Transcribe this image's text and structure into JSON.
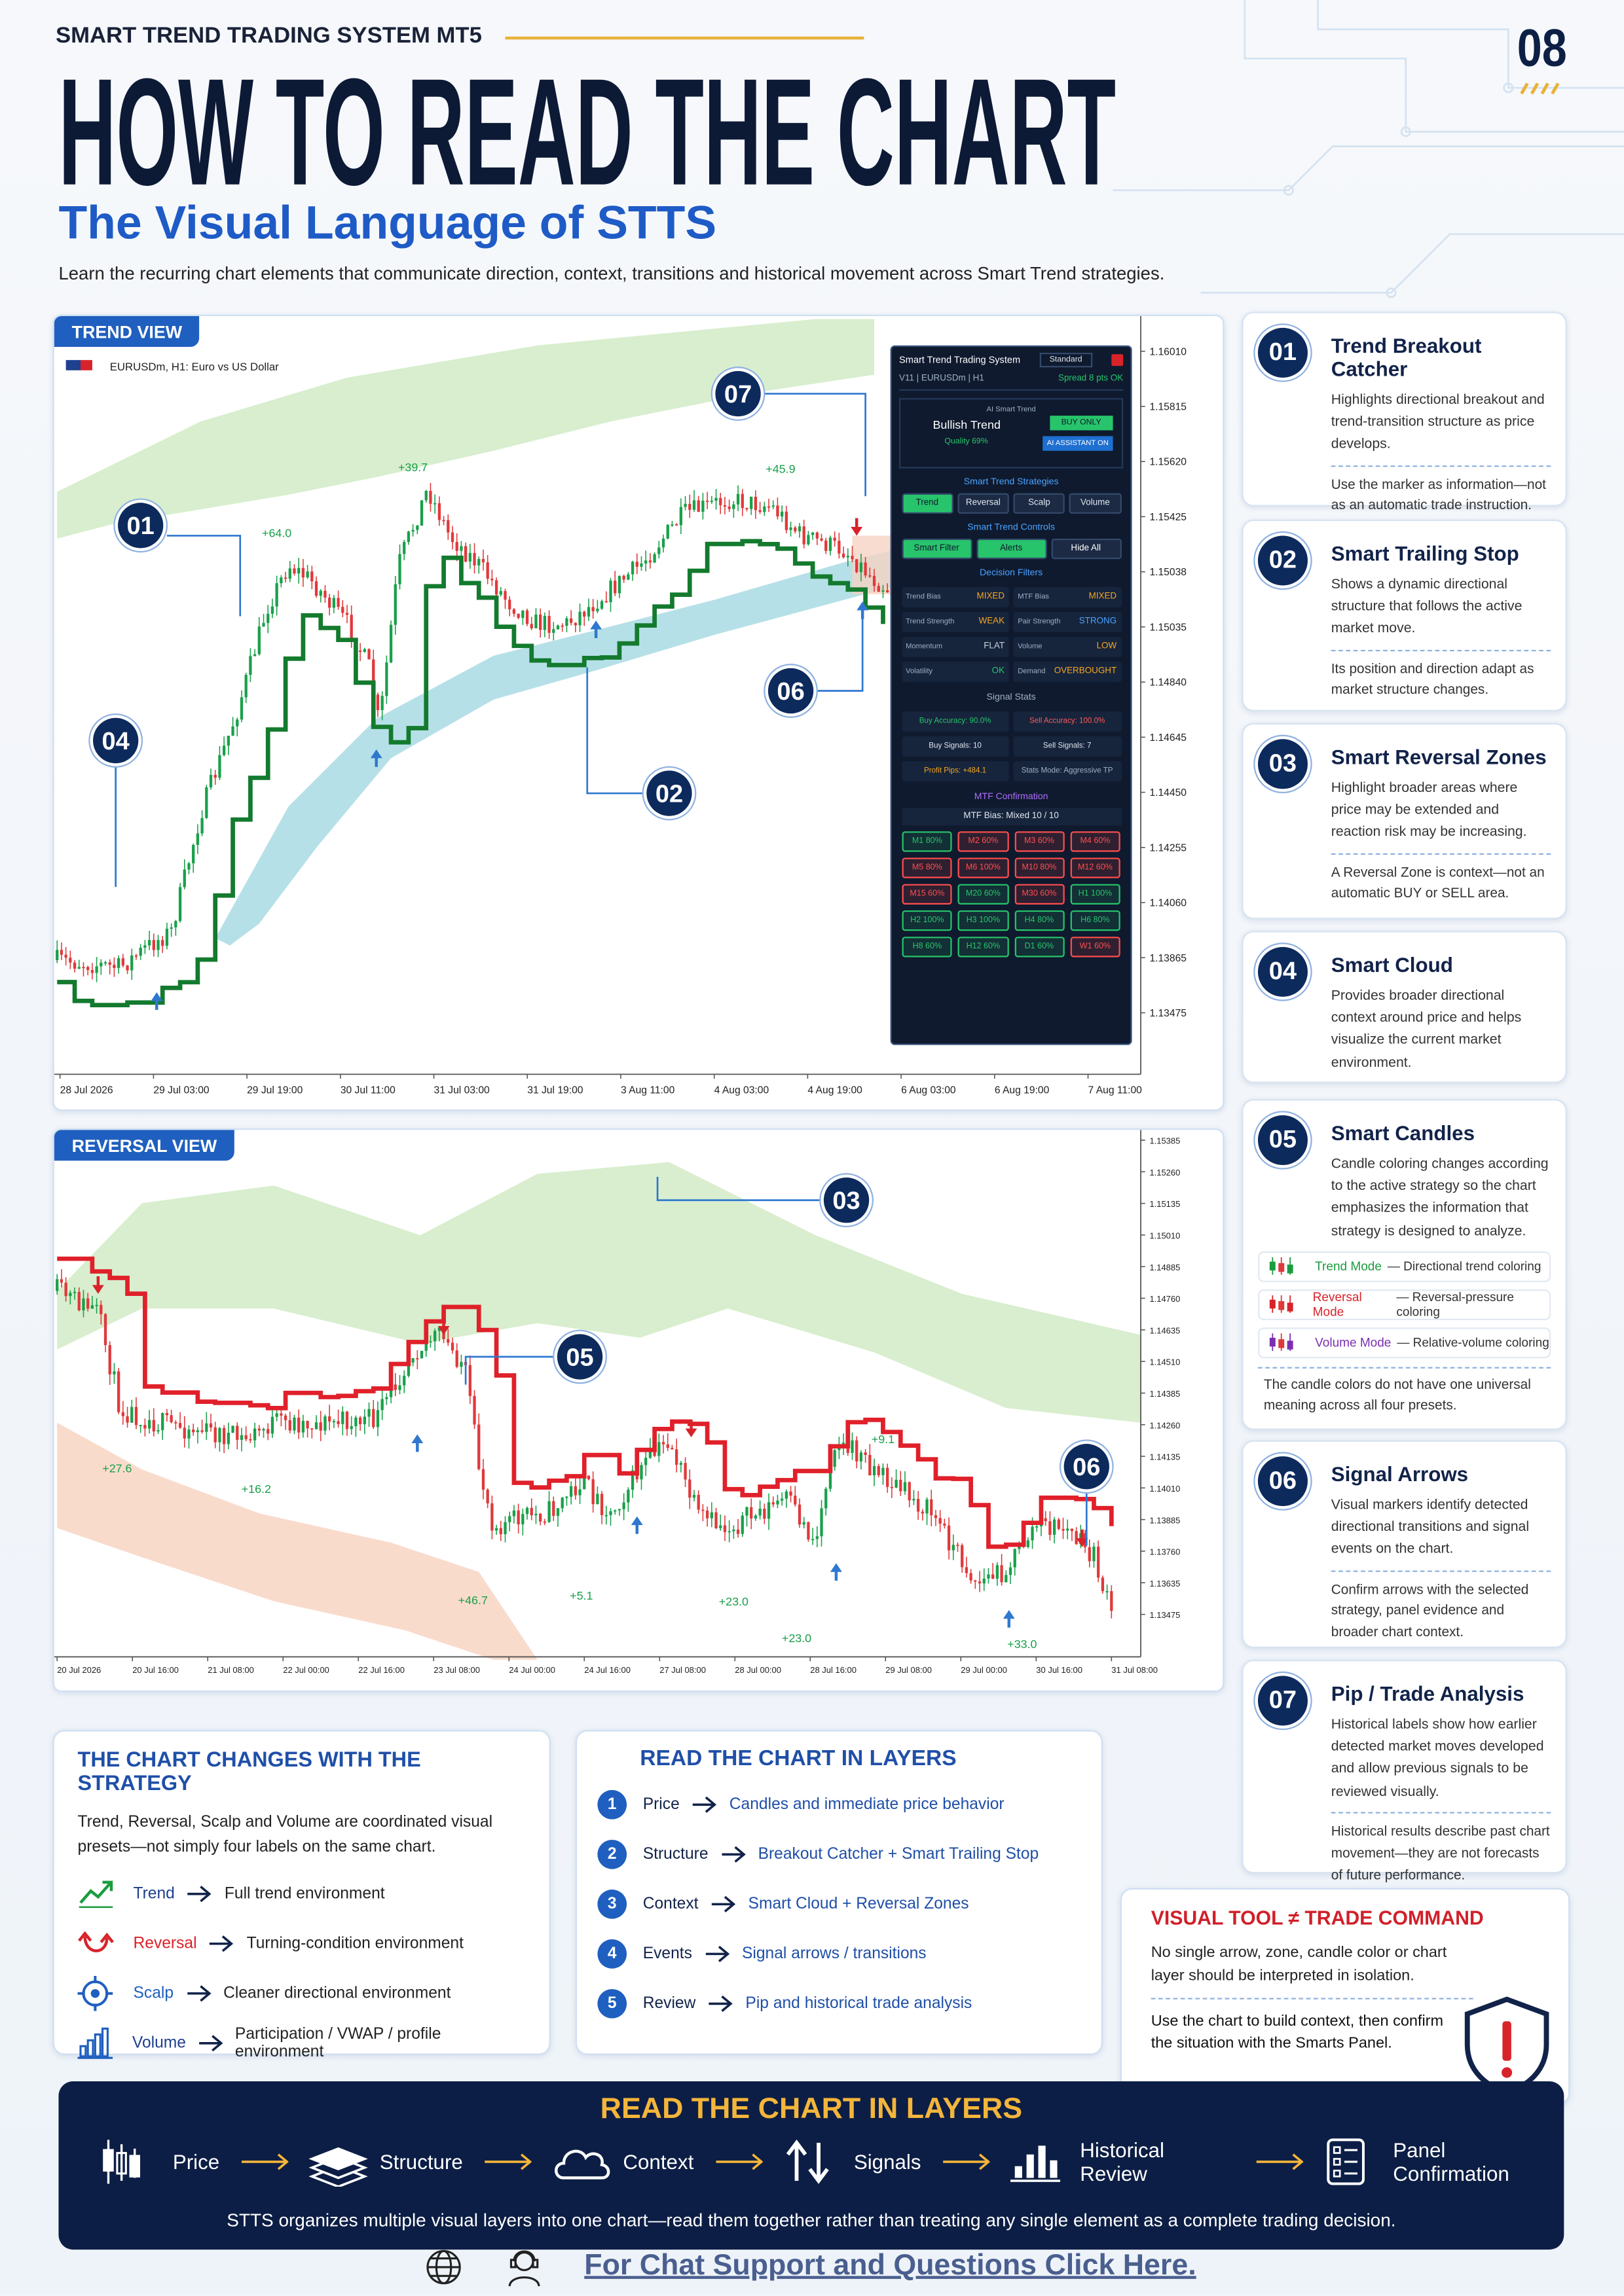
{
  "header": {
    "brand": "SMART TREND TRADING SYSTEM MT5",
    "page_number": "08",
    "title": "HOW TO READ THE CHART",
    "subtitle": "The Visual Language of STTS",
    "intro": "Learn the recurring chart elements that communicate direction, context, transitions and historical movement across Smart Trend strategies."
  },
  "trend_view": {
    "label": "TREND VIEW",
    "symbol": "EURUSDm, H1:  Euro vs US Dollar",
    "price_axis": [
      "1.16010",
      "1.15815",
      "1.15620",
      "1.15425",
      "1.15038",
      "1.15035",
      "1.14840",
      "1.14645",
      "1.14450",
      "1.14255",
      "1.14060",
      "1.13865",
      "1.13475"
    ],
    "time_axis": [
      "28 Jul 2026",
      "29 Jul 03:00",
      "29 Jul 19:00",
      "30 Jul 11:00",
      "31 Jul 03:00",
      "31 Jul 19:00",
      "3 Aug 11:00",
      "4 Aug 03:00",
      "4 Aug 19:00",
      "6 Aug 03:00",
      "6 Aug 19:00",
      "7 Aug 11:00"
    ],
    "callouts": [
      "07",
      "01",
      "04",
      "02",
      "06"
    ],
    "pip_labels": [
      "+39.7",
      "+64.0",
      "+45.9"
    ]
  },
  "panel": {
    "title": "Smart Trend Trading System",
    "preset": "Standard",
    "version": "V11 | EURUSDm | H1",
    "spread": "Spread 8 pts OK",
    "ai_label": "AI Smart Trend",
    "trend": "Bullish Trend",
    "quality": "Quality 69%",
    "buy_only": "BUY ONLY",
    "ai_assistant": "AI ASSISTANT ON",
    "strategies_title": "Smart Trend Strategies",
    "strategies": [
      "Trend",
      "Reversal",
      "Scalp",
      "Volume"
    ],
    "controls_title": "Smart Trend Controls",
    "controls": [
      "Smart Filter",
      "Alerts",
      "Hide All"
    ],
    "filters_title": "Decision Filters",
    "filters": [
      {
        "label": "Trend Bias",
        "value": "MIXED",
        "color": "#f5a623"
      },
      {
        "label": "MTF Bias",
        "value": "MIXED",
        "color": "#f5a623"
      },
      {
        "label": "Trend Strength",
        "value": "WEAK",
        "color": "#f5a623"
      },
      {
        "label": "Pair Strength",
        "value": "STRONG",
        "color": "#4aa3ff"
      },
      {
        "label": "Momentum",
        "value": "FLAT",
        "color": "#c9d3e0"
      },
      {
        "label": "Volume",
        "value": "LOW",
        "color": "#f5a623"
      },
      {
        "label": "Volatility",
        "value": "OK",
        "color": "#27c46b"
      },
      {
        "label": "Demand",
        "value": "OVERBOUGHT",
        "color": "#f5a623"
      }
    ],
    "stats_title": "Signal Stats",
    "stats": [
      {
        "text": "Buy Accuracy: 90.0%",
        "color": "#27c46b"
      },
      {
        "text": "Sell Accuracy: 100.0%",
        "color": "#ff5a5a"
      },
      {
        "text": "Buy Signals: 10",
        "color": "#dfe6ef"
      },
      {
        "text": "Sell Signals: 7",
        "color": "#dfe6ef"
      },
      {
        "text": "Profit Pips: +484.1",
        "color": "#f5a623"
      },
      {
        "text": "Stats Mode: Aggressive TP",
        "color": "#9fb0c6"
      }
    ],
    "mtf_title": "MTF Confirmation",
    "mtf_summary": "MTF Bias: Mixed 10 / 10",
    "mtf": [
      {
        "label": "M1 80%",
        "color": "#27c46b"
      },
      {
        "label": "M2 60%",
        "color": "#ff4d4d"
      },
      {
        "label": "M3 60%",
        "color": "#ff4d4d"
      },
      {
        "label": "M4 60%",
        "color": "#ff4d4d"
      },
      {
        "label": "M5 80%",
        "color": "#ff4d4d"
      },
      {
        "label": "M6 100%",
        "color": "#ff4d4d"
      },
      {
        "label": "M10 80%",
        "color": "#ff4d4d"
      },
      {
        "label": "M12 60%",
        "color": "#ff4d4d"
      },
      {
        "label": "M15 60%",
        "color": "#ff4d4d"
      },
      {
        "label": "M20 60%",
        "color": "#27c46b"
      },
      {
        "label": "M30 60%",
        "color": "#ff4d4d"
      },
      {
        "label": "H1 100%",
        "color": "#27c46b"
      },
      {
        "label": "H2 100%",
        "color": "#27c46b"
      },
      {
        "label": "H3 100%",
        "color": "#27c46b"
      },
      {
        "label": "H4 80%",
        "color": "#27c46b"
      },
      {
        "label": "H6 80%",
        "color": "#27c46b"
      },
      {
        "label": "H8 60%",
        "color": "#27c46b"
      },
      {
        "label": "H12 60%",
        "color": "#27c46b"
      },
      {
        "label": "D1 60%",
        "color": "#27c46b"
      },
      {
        "label": "W1 60%",
        "color": "#ff4d4d"
      }
    ]
  },
  "reversal_view": {
    "label": "REVERSAL VIEW",
    "price_axis": [
      "1.15385",
      "1.15260",
      "1.15135",
      "1.15010",
      "1.14885",
      "1.14760",
      "1.14635",
      "1.14510",
      "1.14385",
      "1.14260",
      "1.14135",
      "1.14010",
      "1.13885",
      "1.13760",
      "1.13635",
      "1.13475"
    ],
    "time_axis": [
      "20 Jul 2026",
      "20 Jul 16:00",
      "21 Jul 08:00",
      "22 Jul 00:00",
      "22 Jul 16:00",
      "23 Jul 08:00",
      "24 Jul 00:00",
      "24 Jul 16:00",
      "27 Jul 08:00",
      "28 Jul 00:00",
      "28 Jul 16:00",
      "29 Jul 08:00",
      "29 Jul 00:00",
      "30 Jul 16:00",
      "31 Jul 08:00"
    ],
    "callouts": [
      "03",
      "05",
      "06"
    ],
    "pip_labels": [
      "+27.6",
      "+16.2",
      "+46.7",
      "+5.1",
      "+23.0",
      "+23.0",
      "+9.1",
      "+33.0"
    ]
  },
  "cards": [
    {
      "number": "01",
      "title": "Trend Breakout Catcher",
      "text": "Highlights directional breakout and trend-transition structure as price develops.",
      "note": "Use the marker as information—not as an automatic trade instruction."
    },
    {
      "number": "02",
      "title": "Smart Trailing Stop",
      "text": "Shows a dynamic directional structure that follows the active market move.",
      "note": "Its position and direction adapt as market structure changes."
    },
    {
      "number": "03",
      "title": "Smart Reversal Zones",
      "text": "Highlight broader areas where price may be extended and reaction risk may be increasing.",
      "note": "A Reversal Zone is context—not an automatic BUY or SELL area."
    },
    {
      "number": "04",
      "title": "Smart Cloud",
      "text": "Provides broader directional context around price and helps visualize the current market environment."
    },
    {
      "number": "05",
      "title": "Smart Candles",
      "text": "Candle coloring changes according to the active strategy so the chart emphasizes the information that strategy is designed to analyze.",
      "modes": [
        {
          "name": "Trend Mode",
          "desc": "— Directional trend coloring",
          "color": "#1a9c3e"
        },
        {
          "name": "Reversal Mode",
          "desc": "— Reversal-pressure coloring",
          "color": "#d8232a"
        },
        {
          "name": "Volume Mode",
          "desc": "— Relative-volume coloring",
          "color": "#7b2fb0"
        }
      ],
      "note": "The candle colors do not have one universal meaning across all four presets."
    },
    {
      "number": "06",
      "title": "Signal Arrows",
      "text": "Visual markers identify detected directional transitions and signal events on the chart.",
      "note": "Confirm arrows with the selected strategy, panel evidence and broader chart context."
    },
    {
      "number": "07",
      "title": "Pip / Trade Analysis",
      "text": "Historical labels show how earlier detected market moves developed and allow previous signals to be reviewed visually.",
      "note": "Historical results describe past chart movement—they are not forecasts of future performance."
    }
  ],
  "strategy": {
    "title": "THE CHART CHANGES WITH THE STRATEGY",
    "text": "Trend, Reversal, Scalp and Volume are coordinated visual presets—not simply four labels on the same chart.",
    "items": [
      {
        "name": "Trend",
        "desc": "Full trend environment",
        "color": "#1f3f8f"
      },
      {
        "name": "Reversal",
        "desc": "Turning-condition environment",
        "color": "#d8232a"
      },
      {
        "name": "Scalp",
        "desc": "Cleaner directional environment",
        "color": "#1f5fbf"
      },
      {
        "name": "Volume",
        "desc": "Participation / VWAP / profile environment",
        "color": "#1f3f8f"
      }
    ]
  },
  "layers": {
    "title": "READ THE CHART IN LAYERS",
    "items": [
      {
        "number": "1",
        "name": "Price",
        "desc": "Candles and immediate price behavior"
      },
      {
        "number": "2",
        "name": "Structure",
        "desc": "Breakout Catcher + Smart Trailing Stop"
      },
      {
        "number": "3",
        "name": "Context",
        "desc": "Smart Cloud + Reversal Zones"
      },
      {
        "number": "4",
        "name": "Events",
        "desc": "Signal arrows / transitions"
      },
      {
        "number": "5",
        "name": "Review",
        "desc": "Pip and historical trade analysis"
      }
    ]
  },
  "warning": {
    "title": "VISUAL TOOL ≠ TRADE COMMAND",
    "text": "No single arrow, zone, candle color or chart layer should be interpreted in isolation.",
    "note": "Use the chart to build context, then confirm the situation with the Smarts Panel."
  },
  "footer": {
    "title": "READ THE CHART IN LAYERS",
    "steps": [
      "Price",
      "Structure",
      "Context",
      "Signals",
      "Historical Review",
      "Panel Confirmation"
    ],
    "text": "STTS organizes multiple visual layers into one chart—read them together rather than treating any single element as a complete trading decision."
  },
  "link": {
    "text": "For Chat Support and Questions Click Here."
  }
}
